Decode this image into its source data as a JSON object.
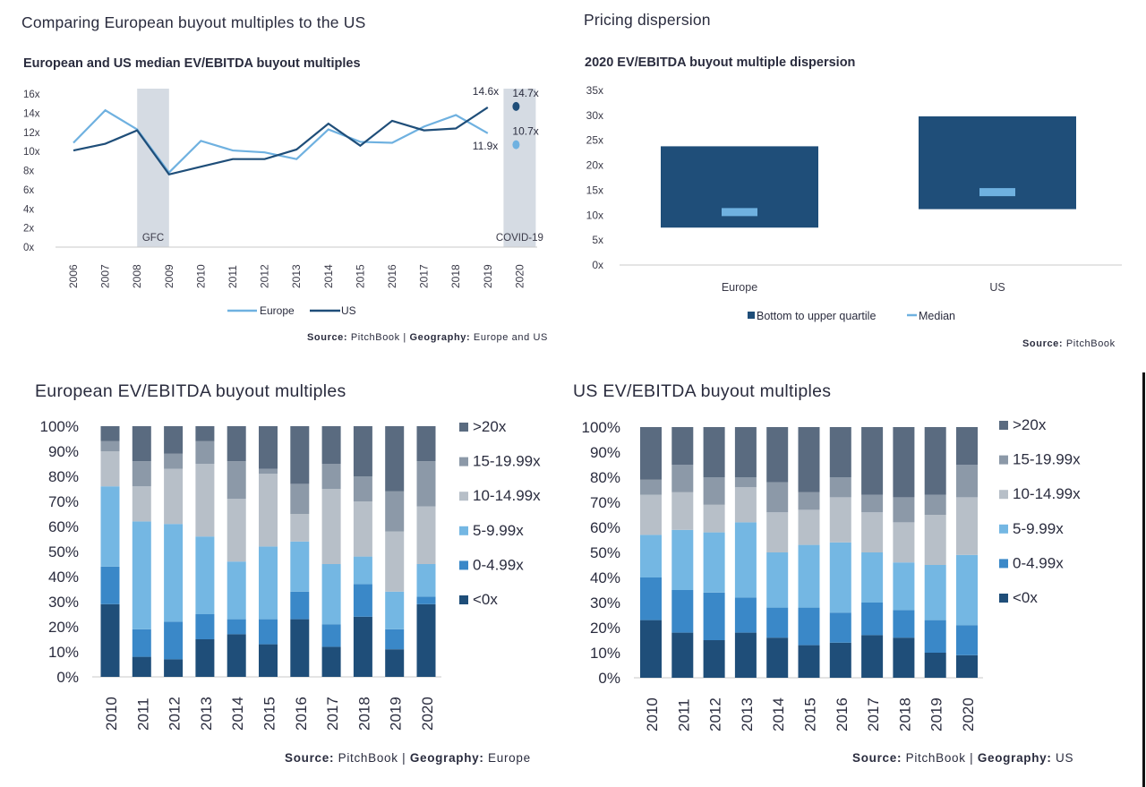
{
  "panels": {
    "tl_title": "Comparing European buyout multiples to the US",
    "tr_title": "Pricing dispersion",
    "bl_title": "European EV/EBITDA buyout multiples",
    "br_title": "US EV/EBITDA buyout multiples"
  },
  "sources": {
    "tl": {
      "label": "Source:",
      "source": "PitchBook",
      "sep": " | ",
      "geo_label": "Geography:",
      "geo": "Europe and US"
    },
    "tr": {
      "label": "Source:",
      "source": "PitchBook"
    },
    "bl": {
      "label": "Source:",
      "source": "PitchBook",
      "sep": " | ",
      "geo_label": "Geography:",
      "geo": "Europe"
    },
    "br": {
      "label": "Source:",
      "source": "PitchBook",
      "sep": " | ",
      "geo_label": "Geography:",
      "geo": "US"
    }
  },
  "colors": {
    "europe_line": "#6fb1e0",
    "us_line": "#1f4e79",
    "shade": "#d5dbe3",
    "box": "#1f4e79",
    "median": "#6fb1e0",
    "stack": [
      "#1f4e79",
      "#3a88c8",
      "#74b7e3",
      "#b7bfc8",
      "#8c99a8",
      "#5a6b80"
    ]
  },
  "chart_data": [
    {
      "type": "line",
      "title": "European and US median EV/EBITDA buyout multiples",
      "x": [
        "2006",
        "2007",
        "2008",
        "2009",
        "2010",
        "2011",
        "2012",
        "2013",
        "2014",
        "2015",
        "2016",
        "2017",
        "2018",
        "2019",
        "2020"
      ],
      "ylim": [
        0,
        16
      ],
      "yticks": [
        "16x",
        "14x",
        "12x",
        "10x",
        "8x",
        "6x",
        "4x",
        "2x",
        "0x"
      ],
      "series": [
        {
          "name": "Europe",
          "values": [
            10.9,
            14.3,
            12.3,
            7.8,
            11.1,
            10.1,
            9.9,
            9.2,
            12.3,
            11.0,
            10.9,
            12.6,
            13.8,
            11.9,
            null
          ]
        },
        {
          "name": "US",
          "values": [
            10.1,
            10.8,
            12.2,
            7.6,
            8.4,
            9.2,
            9.2,
            10.2,
            12.9,
            10.6,
            13.2,
            12.2,
            12.4,
            14.6,
            null
          ]
        }
      ],
      "points_2020": [
        {
          "series": "US",
          "value": 14.7,
          "label": "14.7x"
        },
        {
          "series": "Europe",
          "value": 10.7,
          "label": "10.7x"
        }
      ],
      "end_labels": [
        {
          "text": "14.6x",
          "series": "US"
        },
        {
          "text": "11.9x",
          "series": "Europe"
        }
      ],
      "shaded": [
        {
          "label": "GFC",
          "from": "2008",
          "to": "2009"
        },
        {
          "label": "COVID-19",
          "from": "2020",
          "to": "2020"
        }
      ],
      "legend": [
        "Europe",
        "US"
      ]
    },
    {
      "type": "bar",
      "title": "2020 EV/EBITDA buyout multiple dispersion",
      "categories": [
        "Europe",
        "US"
      ],
      "series": [
        {
          "name": "Bottom to upper quartile",
          "low": [
            7.5,
            11.2
          ],
          "high": [
            23.8,
            29.8
          ]
        },
        {
          "name": "Median",
          "values": [
            10.7,
            14.7
          ]
        }
      ],
      "ylim": [
        0,
        35
      ],
      "yticks": [
        "35x",
        "30x",
        "25x",
        "20x",
        "15x",
        "10x",
        "5x",
        "0x"
      ],
      "legend": [
        "Bottom to upper quartile",
        "Median"
      ]
    },
    {
      "type": "bar",
      "stacked": true,
      "categories": [
        "2010",
        "2011",
        "2012",
        "2013",
        "2014",
        "2015",
        "2016",
        "2017",
        "2018",
        "2019",
        "2020"
      ],
      "yticks": [
        "100%",
        "90%",
        "80%",
        "70%",
        "60%",
        "50%",
        "40%",
        "30%",
        "20%",
        "10%",
        "0%"
      ],
      "legend_order": [
        ">20x",
        "15-19.99x",
        "10-14.99x",
        "5-9.99x",
        "0-4.99x",
        "<0x"
      ],
      "series": [
        {
          "name": "<0x",
          "values": [
            29,
            8,
            7,
            15,
            17,
            13,
            23,
            12,
            24,
            11,
            29
          ]
        },
        {
          "name": "0-4.99x",
          "values": [
            15,
            11,
            15,
            10,
            6,
            10,
            11,
            9,
            13,
            8,
            3
          ]
        },
        {
          "name": "5-9.99x",
          "values": [
            32,
            43,
            39,
            31,
            23,
            29,
            20,
            24,
            11,
            15,
            13
          ]
        },
        {
          "name": "10-14.99x",
          "values": [
            14,
            14,
            22,
            29,
            25,
            29,
            11,
            30,
            22,
            24,
            23
          ]
        },
        {
          "name": "15-19.99x",
          "values": [
            4,
            10,
            6,
            9,
            15,
            2,
            12,
            10,
            10,
            16,
            18
          ]
        },
        {
          "name": ">20x",
          "values": [
            6,
            14,
            11,
            6,
            14,
            17,
            23,
            15,
            20,
            26,
            14
          ]
        }
      ]
    },
    {
      "type": "bar",
      "stacked": true,
      "categories": [
        "2010",
        "2011",
        "2012",
        "2013",
        "2014",
        "2015",
        "2016",
        "2017",
        "2018",
        "2019",
        "2020"
      ],
      "yticks": [
        "100%",
        "90%",
        "80%",
        "70%",
        "60%",
        "50%",
        "40%",
        "30%",
        "20%",
        "10%",
        "0%"
      ],
      "legend_order": [
        ">20x",
        "15-19.99x",
        "10-14.99x",
        "5-9.99x",
        "0-4.99x",
        "<0x"
      ],
      "series": [
        {
          "name": "<0x",
          "values": [
            23,
            18,
            15,
            18,
            16,
            13,
            14,
            17,
            16,
            10,
            9
          ]
        },
        {
          "name": "0-4.99x",
          "values": [
            17,
            17,
            19,
            14,
            12,
            15,
            12,
            13,
            11,
            13,
            12
          ]
        },
        {
          "name": "5-9.99x",
          "values": [
            17,
            24,
            24,
            30,
            22,
            25,
            28,
            20,
            19,
            22,
            28
          ]
        },
        {
          "name": "10-14.99x",
          "values": [
            16,
            15,
            11,
            14,
            16,
            14,
            18,
            16,
            16,
            20,
            23
          ]
        },
        {
          "name": "15-19.99x",
          "values": [
            6,
            11,
            11,
            4,
            12,
            7,
            8,
            7,
            10,
            8,
            13
          ]
        },
        {
          "name": ">20x",
          "values": [
            21,
            15,
            20,
            20,
            22,
            26,
            20,
            27,
            28,
            27,
            15
          ]
        }
      ]
    }
  ]
}
